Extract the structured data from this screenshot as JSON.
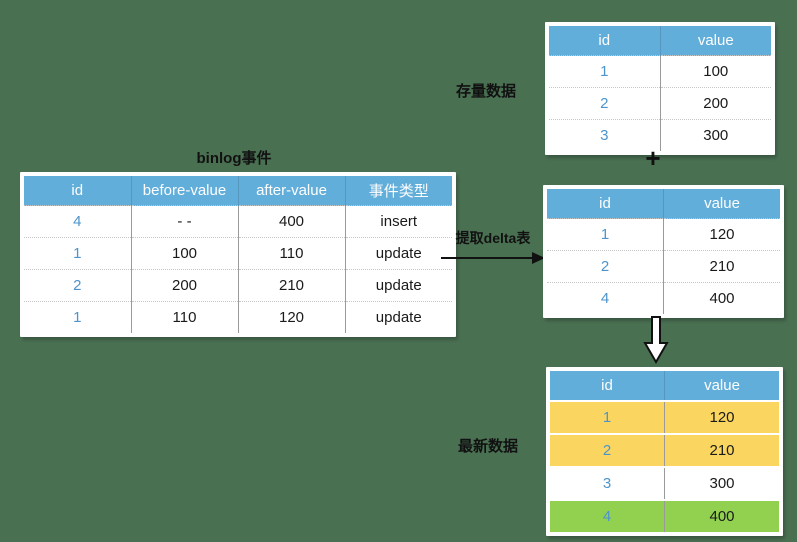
{
  "canvas": {
    "bg": "#4A7052"
  },
  "colors": {
    "header_blue": "#62AEDB",
    "id_text_blue": "#4E94CB",
    "yellow": "#FAD55F",
    "green": "#92D050",
    "card_white": "#FFFFFF",
    "text_black": "#1A1A1A",
    "arrow_black": "#111111"
  },
  "binlog_table": {
    "title": "binlog事件",
    "headers": [
      "id",
      "before-value",
      "after-value",
      "事件类型"
    ],
    "rows": [
      [
        "4",
        "- -",
        "400",
        "insert"
      ],
      [
        "1",
        "100",
        "110",
        "update"
      ],
      [
        "2",
        "200",
        "210",
        "update"
      ],
      [
        "1",
        "110",
        "120",
        "update"
      ]
    ]
  },
  "stock_table": {
    "label": "存量数据",
    "headers": [
      "id",
      "value"
    ],
    "rows": [
      [
        "1",
        "100"
      ],
      [
        "2",
        "200"
      ],
      [
        "3",
        "300"
      ]
    ]
  },
  "delta_table": {
    "arrow_label": "提取delta表",
    "headers": [
      "id",
      "value"
    ],
    "rows": [
      [
        "1",
        "120"
      ],
      [
        "2",
        "210"
      ],
      [
        "4",
        "400"
      ]
    ]
  },
  "latest_table": {
    "label": "最新数据",
    "headers": [
      "id",
      "value"
    ],
    "rows": [
      [
        "1",
        "120"
      ],
      [
        "2",
        "210"
      ],
      [
        "3",
        "300"
      ],
      [
        "4",
        "400"
      ]
    ],
    "row_highlights": [
      "yellow",
      "yellow",
      "none",
      "green"
    ]
  },
  "operators": {
    "plus": "+"
  }
}
